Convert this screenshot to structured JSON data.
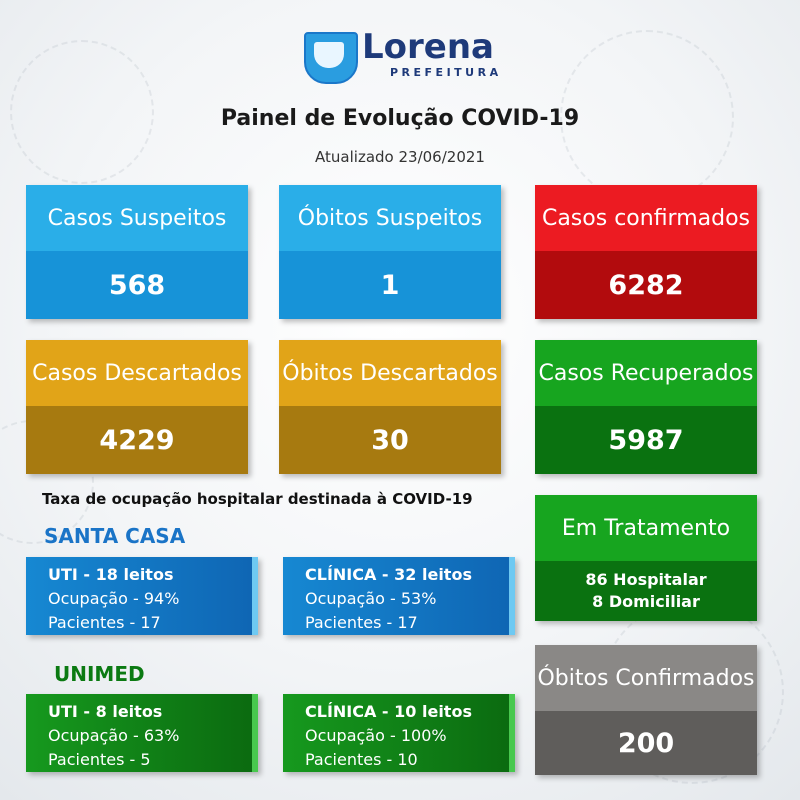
{
  "header": {
    "logo_name": "Lorena",
    "logo_sub": "PREFEITURA",
    "title": "Painel de Evolução COVID-19",
    "updated": "Atualizado 23/06/2021"
  },
  "cards": {
    "suspected_cases": {
      "label": "Casos Suspeitos",
      "value": "568"
    },
    "suspected_deaths": {
      "label": "Óbitos Suspeitos",
      "value": "1"
    },
    "confirmed_cases": {
      "label": "Casos confirmados",
      "value": "6282"
    },
    "discarded_cases": {
      "label": "Casos Descartados",
      "value": "4229"
    },
    "discarded_deaths": {
      "label": "Óbitos Descartados",
      "value": "30"
    },
    "recovered_cases": {
      "label": "Casos Recuperados",
      "value": "5987"
    },
    "in_treatment": {
      "label": "Em Tratamento",
      "line1": "86 Hospitalar",
      "line2": "8 Domiciliar"
    },
    "confirmed_deaths": {
      "label": "Óbitos Confirmados",
      "value": "200"
    }
  },
  "occupancy": {
    "title": "Taxa de ocupação hospitalar destinada à COVID-19",
    "santa_casa": {
      "name": "SANTA CASA",
      "color": "#1a74c7",
      "uti": {
        "header": "UTI - 18 leitos",
        "occupancy": "Ocupação - 94%",
        "patients": "Pacientes - 17"
      },
      "clinica": {
        "header": "CLÍNICA - 32 leitos",
        "occupancy": "Ocupação - 53%",
        "patients": "Pacientes - 17"
      }
    },
    "unimed": {
      "name": "UNIMED",
      "color": "#0b7a12",
      "uti": {
        "header": "UTI - 8 leitos",
        "occupancy": "Ocupação - 63%",
        "patients": "Pacientes - 5"
      },
      "clinica": {
        "header": "CLÍNICA - 10 leitos",
        "occupancy": "Ocupação - 100%",
        "patients": "Pacientes - 10"
      }
    }
  }
}
